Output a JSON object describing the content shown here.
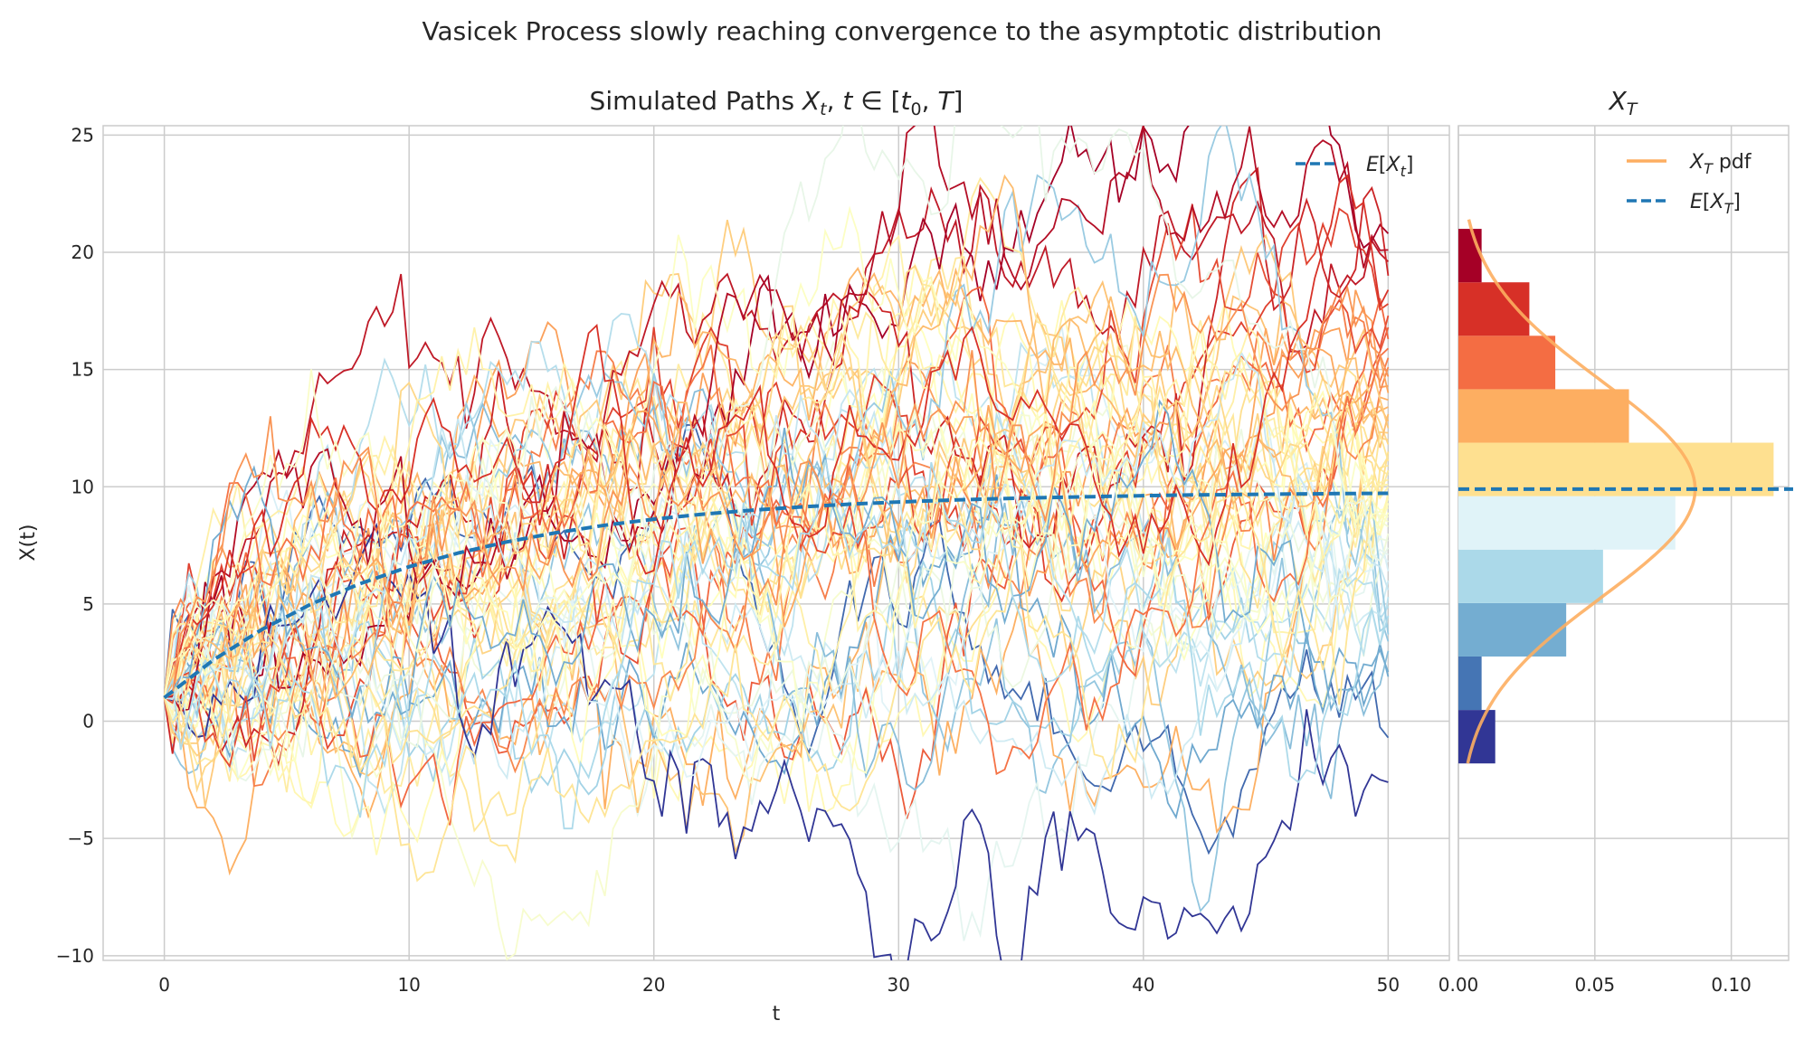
{
  "figure": {
    "suptitle": "Vasicek Process slowly reaching convergence to the asymptotic distribution"
  },
  "chart_data": [
    {
      "type": "line",
      "title": "Simulated Paths X_t, t ∈ [t_0, T]",
      "xlabel": "t",
      "ylabel": "X(t)",
      "xlim": [
        -2.5,
        52.5
      ],
      "ylim": [
        -10.2,
        25.4
      ],
      "xticks": [
        0,
        10,
        20,
        30,
        40,
        50
      ],
      "yticks": [
        -10,
        -5,
        0,
        5,
        10,
        15,
        20,
        25
      ],
      "ytick_labels": [
        "−10",
        "−5",
        "0",
        "5",
        "10",
        "15",
        "20",
        "25"
      ],
      "grid": true,
      "legend": {
        "placement": "top-right",
        "entries": [
          "E[X_t]"
        ]
      },
      "mean_series": {
        "name": "E[X_t]",
        "color": "#1f77b4",
        "style": "dashed",
        "x": [
          0,
          2,
          4,
          6,
          8,
          10,
          12,
          14,
          16,
          18,
          20,
          22,
          24,
          26,
          28,
          30,
          32,
          34,
          36,
          38,
          40,
          42,
          44,
          46,
          48,
          50
        ],
        "values": [
          1.0,
          2.61,
          3.92,
          5.0,
          5.87,
          6.59,
          7.17,
          7.65,
          8.04,
          8.36,
          8.62,
          8.83,
          9.0,
          9.14,
          9.26,
          9.35,
          9.43,
          9.49,
          9.54,
          9.58,
          9.62,
          9.65,
          9.67,
          9.69,
          9.71,
          9.72
        ]
      },
      "simulated_paths": {
        "count": 60,
        "start_value": 1.0,
        "end_values": [
          -0.7,
          -2.6,
          1.9,
          2.1,
          3.0,
          3.4,
          3.7,
          4.1,
          4.5,
          4.9,
          5.3,
          5.6,
          6.0,
          6.4,
          6.8,
          7.1,
          7.4,
          7.7,
          8.0,
          8.3,
          8.5,
          8.7,
          8.9,
          9.1,
          9.3,
          9.5,
          9.6,
          9.8,
          10.0,
          10.1,
          10.3,
          10.5,
          10.7,
          10.9,
          11.1,
          11.3,
          11.5,
          11.8,
          12.0,
          12.3,
          12.5,
          12.8,
          13.1,
          13.4,
          13.7,
          14.0,
          14.3,
          14.7,
          15.1,
          15.5,
          15.9,
          16.3,
          16.8,
          17.3,
          17.8,
          18.4,
          19.0,
          19.6,
          20.1,
          20.8
        ],
        "colormap": "RdYlBu_r"
      }
    },
    {
      "type": "bar",
      "orientation": "horizontal",
      "title": "X_T",
      "xlim": [
        0,
        0.121
      ],
      "ylim": [
        -10.2,
        25.4
      ],
      "xticks": [
        0.0,
        0.05,
        0.1
      ],
      "xtick_labels": [
        "0.00",
        "0.05",
        "0.10"
      ],
      "grid": true,
      "legend": {
        "placement": "top-right",
        "entries": [
          "X_T pdf",
          "E[X_T]"
        ]
      },
      "bin_edges": [
        -1.8,
        0.48,
        2.76,
        5.04,
        7.32,
        9.6,
        11.88,
        14.16,
        16.44,
        18.72,
        21.0
      ],
      "density": [
        0.0135,
        0.0085,
        0.0395,
        0.053,
        0.0795,
        0.1155,
        0.0625,
        0.0355,
        0.026,
        0.0085
      ],
      "bin_colors": [
        "#313695",
        "#4575b4",
        "#74add1",
        "#abd9e9",
        "#e0f3f8",
        "#fee090",
        "#fdae61",
        "#f46d43",
        "#d73027",
        "#a50026"
      ],
      "pdf": {
        "name": "X_T pdf",
        "color": "#fdae61",
        "mean": 9.9,
        "std": 4.6
      },
      "mean_line": {
        "name": "E[X_T]",
        "value": 9.9,
        "color": "#1f77b4",
        "style": "dashed"
      }
    }
  ]
}
